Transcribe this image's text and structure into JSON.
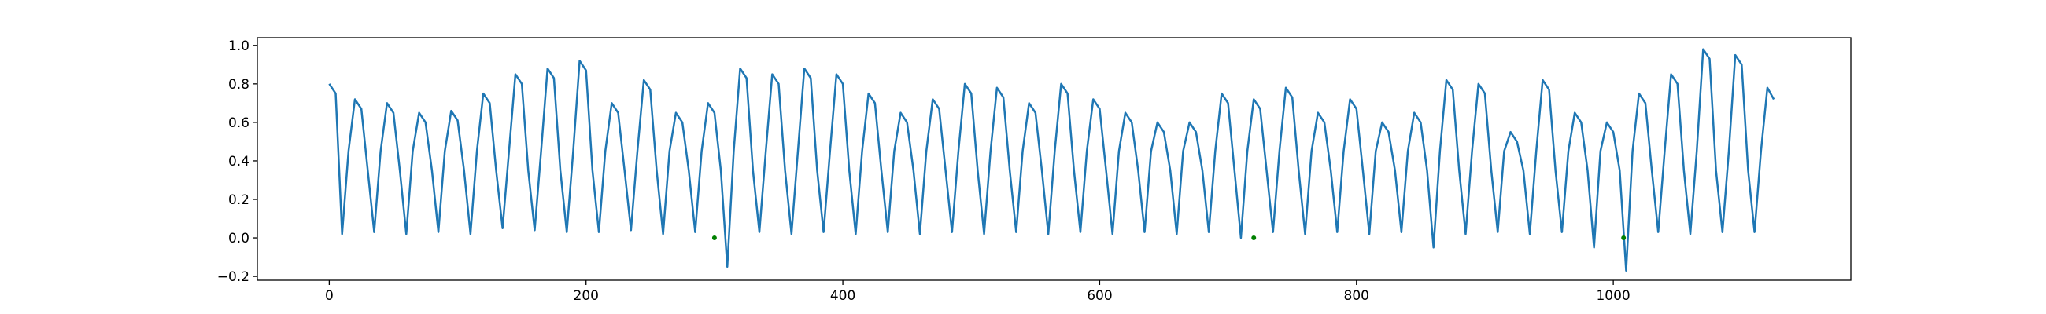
{
  "chart_data": {
    "type": "line",
    "x": [
      0,
      5,
      10,
      15,
      20,
      25,
      30,
      35,
      40,
      45,
      50,
      55,
      60,
      65,
      70,
      75,
      80,
      85,
      90,
      95,
      100,
      105,
      110,
      115,
      120,
      125,
      130,
      135,
      140,
      145,
      150,
      155,
      160,
      165,
      170,
      175,
      180,
      185,
      190,
      195,
      200,
      205,
      210,
      215,
      220,
      225,
      230,
      235,
      240,
      245,
      250,
      255,
      260,
      265,
      270,
      275,
      280,
      285,
      290,
      295,
      300,
      305,
      310,
      315,
      320,
      325,
      330,
      335,
      340,
      345,
      350,
      355,
      360,
      365,
      370,
      375,
      380,
      385,
      390,
      395,
      400,
      405,
      410,
      415,
      420,
      425,
      430,
      435,
      440,
      445,
      450,
      455,
      460,
      465,
      470,
      475,
      480,
      485,
      490,
      495,
      500,
      505,
      510,
      515,
      520,
      525,
      530,
      535,
      540,
      545,
      550,
      555,
      560,
      565,
      570,
      575,
      580,
      585,
      590,
      595,
      600,
      605,
      610,
      615,
      620,
      625,
      630,
      635,
      640,
      645,
      650,
      655,
      660,
      665,
      670,
      675,
      680,
      685,
      690,
      695,
      700,
      705,
      710,
      715,
      720,
      725,
      730,
      735,
      740,
      745,
      750,
      755,
      760,
      765,
      770,
      775,
      780,
      785,
      790,
      795,
      800,
      805,
      810,
      815,
      820,
      825,
      830,
      835,
      840,
      845,
      850,
      855,
      860,
      865,
      870,
      875,
      880,
      885,
      890,
      895,
      900,
      905,
      910,
      915,
      920,
      925,
      930,
      935,
      940,
      945,
      950,
      955,
      960,
      965,
      970,
      975,
      980,
      985,
      990,
      995,
      1000,
      1005,
      1010,
      1015,
      1020,
      1025,
      1030,
      1035,
      1040,
      1045,
      1050,
      1055,
      1060,
      1065,
      1070,
      1075,
      1080,
      1085,
      1090,
      1095,
      1100,
      1105,
      1110,
      1115,
      1120,
      1125
    ],
    "series": [
      {
        "color": "#1f77b4",
        "values": [
          0.8,
          0.75,
          0.02,
          0.45,
          0.72,
          0.67,
          0.35,
          0.03,
          0.45,
          0.7,
          0.65,
          0.35,
          0.02,
          0.45,
          0.65,
          0.6,
          0.35,
          0.03,
          0.45,
          0.66,
          0.61,
          0.35,
          0.02,
          0.45,
          0.75,
          0.7,
          0.35,
          0.05,
          0.45,
          0.85,
          0.8,
          0.35,
          0.04,
          0.45,
          0.88,
          0.83,
          0.35,
          0.03,
          0.45,
          0.92,
          0.87,
          0.35,
          0.03,
          0.45,
          0.7,
          0.65,
          0.35,
          0.04,
          0.45,
          0.82,
          0.77,
          0.35,
          0.02,
          0.45,
          0.65,
          0.6,
          0.35,
          0.03,
          0.45,
          0.7,
          0.65,
          0.35,
          -0.15,
          0.45,
          0.88,
          0.83,
          0.35,
          0.03,
          0.45,
          0.85,
          0.8,
          0.35,
          0.02,
          0.45,
          0.88,
          0.83,
          0.35,
          0.03,
          0.45,
          0.85,
          0.8,
          0.35,
          0.02,
          0.45,
          0.75,
          0.7,
          0.35,
          0.03,
          0.45,
          0.65,
          0.6,
          0.35,
          0.02,
          0.45,
          0.72,
          0.67,
          0.35,
          0.03,
          0.45,
          0.8,
          0.75,
          0.35,
          0.02,
          0.45,
          0.78,
          0.73,
          0.35,
          0.03,
          0.45,
          0.7,
          0.65,
          0.35,
          0.02,
          0.45,
          0.8,
          0.75,
          0.35,
          0.03,
          0.45,
          0.72,
          0.67,
          0.35,
          0.02,
          0.45,
          0.65,
          0.6,
          0.35,
          0.03,
          0.45,
          0.6,
          0.55,
          0.35,
          0.02,
          0.45,
          0.6,
          0.55,
          0.35,
          0.03,
          0.45,
          0.75,
          0.7,
          0.35,
          0.0,
          0.45,
          0.72,
          0.67,
          0.35,
          0.03,
          0.45,
          0.78,
          0.73,
          0.35,
          0.02,
          0.45,
          0.65,
          0.6,
          0.35,
          0.03,
          0.45,
          0.72,
          0.67,
          0.35,
          0.02,
          0.45,
          0.6,
          0.55,
          0.35,
          0.03,
          0.45,
          0.65,
          0.6,
          0.35,
          -0.05,
          0.45,
          0.82,
          0.77,
          0.35,
          0.02,
          0.45,
          0.8,
          0.75,
          0.35,
          0.03,
          0.45,
          0.55,
          0.5,
          0.35,
          0.02,
          0.45,
          0.82,
          0.77,
          0.35,
          0.03,
          0.45,
          0.65,
          0.6,
          0.35,
          -0.05,
          0.45,
          0.6,
          0.55,
          0.35,
          -0.17,
          0.45,
          0.75,
          0.7,
          0.35,
          0.03,
          0.45,
          0.85,
          0.8,
          0.35,
          0.02,
          0.45,
          0.98,
          0.93,
          0.35,
          0.03,
          0.45,
          0.95,
          0.9,
          0.35,
          0.03,
          0.45,
          0.78,
          0.72
        ]
      },
      {
        "color": "#008000",
        "marker": true,
        "x": [
          300,
          720,
          1008
        ],
        "values": [
          0,
          0,
          0
        ]
      }
    ],
    "xlim": [
      -56,
      1185
    ],
    "ylim": [
      -0.22,
      1.04
    ],
    "xticks": [
      0,
      200,
      400,
      600,
      800,
      1000
    ],
    "yticks": [
      {
        "value": -0.2,
        "label": "−0.2"
      },
      {
        "value": 0,
        "label": "0.0"
      },
      0.2,
      0.4,
      0.6,
      0.8,
      {
        "value": 1,
        "label": "1.0"
      }
    ]
  }
}
